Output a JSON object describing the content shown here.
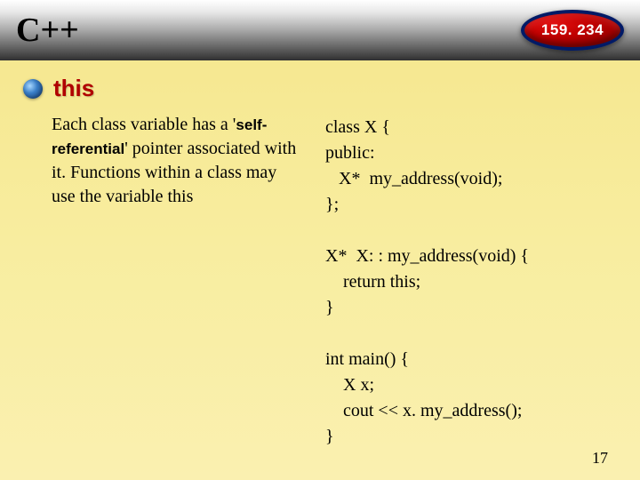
{
  "header": {
    "title": "C++",
    "badge": "159. 234"
  },
  "section": {
    "heading": "this"
  },
  "body": {
    "intro_before": "Each class variable has a '",
    "bold": "self-referential",
    "intro_after": "' pointer associated with it. Functions within a class may use the variable this"
  },
  "code": "class X {\npublic:\n   X*  my_address(void);\n};\n\nX*  X: : my_address(void) {\n    return this;\n}\n\nint main() {\n    X x;\n    cout << x. my_address();\n}",
  "page_number": "17",
  "colors": {
    "heading": "#b00000",
    "badge_bg": "#c00000",
    "badge_border": "#001a66",
    "bullet": "#3a7fc8",
    "body_bg_top": "#f5e68c",
    "body_bg_bottom": "#faf0b0"
  },
  "fonts": {
    "title_family": "Times New Roman",
    "title_size_pt": 28,
    "heading_family": "Verdana",
    "heading_size_pt": 20,
    "body_size_pt": 15,
    "code_size_pt": 15
  }
}
